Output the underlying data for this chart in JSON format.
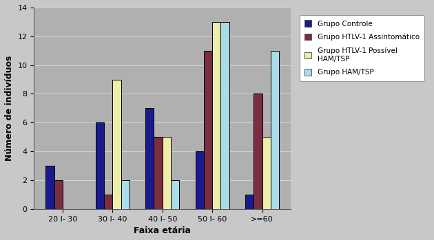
{
  "categories": [
    "20 I- 30",
    "30 I- 40",
    "40 I- 50",
    "50 I- 60",
    ">=60"
  ],
  "groups": [
    {
      "label": "Grupo Controle",
      "color": "#1a1a8c",
      "values": [
        3,
        6,
        7,
        4,
        1
      ]
    },
    {
      "label": "Grupo HTLV-1 Assintomático",
      "color": "#7b2d42",
      "values": [
        2,
        1,
        5,
        11,
        8
      ]
    },
    {
      "label": "Grupo HTLV-1 Possível\nHAM/TSP",
      "color": "#eeeeaa",
      "values": [
        0,
        9,
        5,
        13,
        5
      ]
    },
    {
      "label": "Grupo HAM/TSP",
      "color": "#aadde8",
      "values": [
        0,
        2,
        2,
        13,
        11
      ]
    }
  ],
  "xlabel": "Faixa etária",
  "ylabel": "Número de indivíduos",
  "ylim": [
    0,
    14
  ],
  "yticks": [
    0,
    2,
    4,
    6,
    8,
    10,
    12,
    14
  ],
  "plot_bg_color": "#b0b0b0",
  "fig_bg_color": "#c8c8c8",
  "bar_edge_color": "#000000",
  "bar_width": 0.17,
  "legend_bg": "#ffffff",
  "legend_edge_color": "#999999"
}
